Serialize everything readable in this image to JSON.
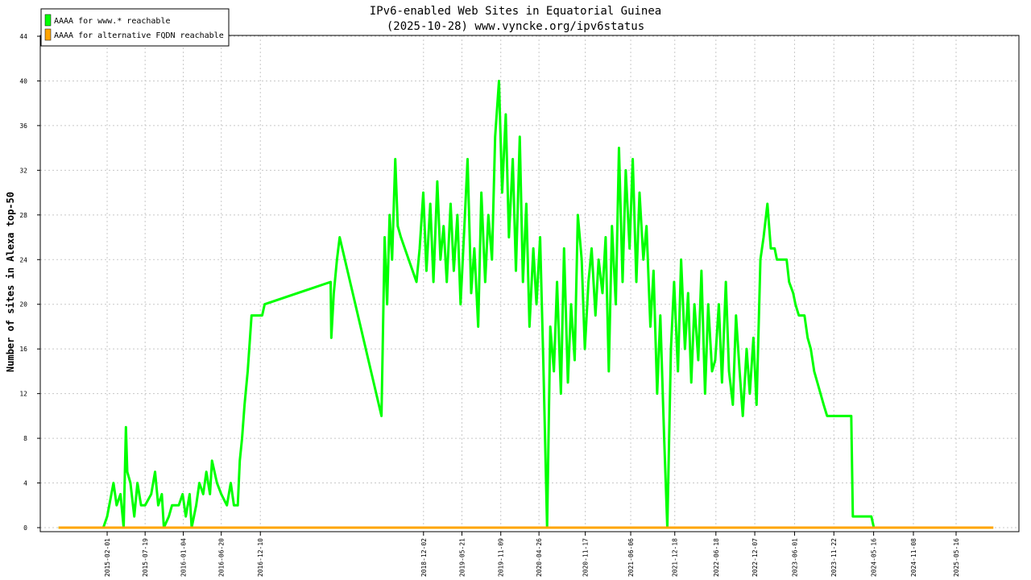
{
  "chart_data": {
    "type": "line",
    "title": "IPv6-enabled Web Sites in Equatorial Guinea",
    "subtitle": "(2025-10-28) www.vyncke.org/ipv6status",
    "ylabel": "Number of sites in Alexa top-50",
    "ylim": [
      0,
      44
    ],
    "yticks": [
      0,
      4,
      8,
      12,
      16,
      20,
      24,
      28,
      32,
      36,
      40,
      44
    ],
    "xlim": [
      "2014-04-11",
      "2026-02-18"
    ],
    "xticks": [
      "2015-02-01",
      "2015-07-19",
      "2016-01-04",
      "2016-06-20",
      "2016-12-10",
      "2018-12-02",
      "2019-05-21",
      "2019-11-09",
      "2020-04-26",
      "2020-11-17",
      "2021-06-06",
      "2021-12-18",
      "2022-06-18",
      "2022-12-07",
      "2023-06-01",
      "2023-11-22",
      "2024-05-16",
      "2024-11-08",
      "2025-05-16"
    ],
    "grid": true,
    "legend": "upper left",
    "series": [
      {
        "name": "AAAA for www.* reachable",
        "color": "#00ff00",
        "x": [
          "2014-07-01",
          "2015-01-15",
          "2015-02-01",
          "2015-03-01",
          "2015-03-15",
          "2015-04-01",
          "2015-04-15",
          "2015-04-25",
          "2015-05-01",
          "2015-05-15",
          "2015-06-01",
          "2015-06-15",
          "2015-07-01",
          "2015-07-19",
          "2015-08-15",
          "2015-09-01",
          "2015-09-15",
          "2015-10-01",
          "2015-10-10",
          "2015-11-01",
          "2015-11-15",
          "2015-12-15",
          "2016-01-01",
          "2016-01-15",
          "2016-02-01",
          "2016-02-10",
          "2016-03-01",
          "2016-03-15",
          "2016-04-01",
          "2016-04-15",
          "2016-05-01",
          "2016-05-10",
          "2016-06-01",
          "2016-06-20",
          "2016-07-15",
          "2016-08-01",
          "2016-08-15",
          "2016-09-01",
          "2016-09-10",
          "2016-09-20",
          "2016-10-01",
          "2016-10-15",
          "2016-11-01",
          "2016-12-18",
          "2016-12-29",
          "2017-10-17",
          "2017-10-20",
          "2017-10-31",
          "2017-11-14",
          "2017-11-26",
          "2018-05-30",
          "2018-06-13",
          "2018-06-24",
          "2018-07-05",
          "2018-07-16",
          "2018-07-30",
          "2018-08-10",
          "2018-08-24",
          "2018-11-01",
          "2018-11-15",
          "2018-12-01",
          "2018-12-15",
          "2019-01-01",
          "2019-01-15",
          "2019-02-01",
          "2019-02-15",
          "2019-03-01",
          "2019-03-15",
          "2019-04-01",
          "2019-04-15",
          "2019-05-01",
          "2019-05-15",
          "2019-06-01",
          "2019-06-15",
          "2019-07-01",
          "2019-07-15",
          "2019-08-01",
          "2019-08-15",
          "2019-09-01",
          "2019-09-15",
          "2019-10-01",
          "2019-10-15",
          "2019-11-01",
          "2019-11-15",
          "2019-12-01",
          "2019-12-15",
          "2020-01-01",
          "2020-01-15",
          "2020-02-01",
          "2020-02-15",
          "2020-03-01",
          "2020-03-15",
          "2020-04-01",
          "2020-04-15",
          "2020-05-01",
          "2020-05-15",
          "2020-06-01",
          "2020-06-15",
          "2020-07-01",
          "2020-07-15",
          "2020-08-01",
          "2020-08-15",
          "2020-09-01",
          "2020-09-15",
          "2020-10-01",
          "2020-10-15",
          "2020-11-01",
          "2020-11-15",
          "2020-12-01",
          "2020-12-15",
          "2021-01-01",
          "2021-01-15",
          "2021-02-01",
          "2021-02-15",
          "2021-03-01",
          "2021-03-15",
          "2021-04-01",
          "2021-04-15",
          "2021-05-01",
          "2021-05-15",
          "2021-06-01",
          "2021-06-15",
          "2021-07-01",
          "2021-07-15",
          "2021-08-01",
          "2021-08-15",
          "2021-09-01",
          "2021-09-15",
          "2021-10-01",
          "2021-10-15",
          "2021-11-01",
          "2021-11-15",
          "2021-12-01",
          "2021-12-15",
          "2022-01-01",
          "2022-01-15",
          "2022-02-01",
          "2022-02-15",
          "2022-03-01",
          "2022-03-15",
          "2022-04-01",
          "2022-04-15",
          "2022-05-01",
          "2022-05-15",
          "2022-06-01",
          "2022-06-15",
          "2022-07-01",
          "2022-07-15",
          "2022-08-01",
          "2022-08-15",
          "2022-09-01",
          "2022-09-15",
          "2022-10-01",
          "2022-10-15",
          "2022-11-01",
          "2022-11-15",
          "2022-12-01",
          "2022-12-15",
          "2023-01-01",
          "2023-01-15",
          "2023-02-01",
          "2023-02-16",
          "2023-03-05",
          "2023-03-15",
          "2023-04-27",
          "2023-05-08",
          "2023-05-26",
          "2023-06-05",
          "2023-06-20",
          "2023-07-15",
          "2023-07-29",
          "2023-08-12",
          "2023-08-27",
          "2023-09-10",
          "2023-09-24",
          "2023-10-08",
          "2023-10-23",
          "2024-02-07",
          "2024-02-14",
          "2024-05-06",
          "2024-05-17"
        ],
        "values": [
          0,
          0,
          1,
          4,
          2,
          3,
          0,
          9,
          5,
          4,
          1,
          4,
          2,
          2,
          3,
          5,
          2,
          3,
          0,
          1,
          2,
          2,
          3,
          1,
          3,
          0,
          2,
          4,
          3,
          5,
          3,
          6,
          4,
          3,
          2,
          4,
          2,
          2,
          6,
          8,
          11,
          14,
          19,
          19,
          20,
          22,
          17,
          21,
          24,
          26,
          10,
          26,
          20,
          28,
          24,
          33,
          27,
          26,
          22,
          25,
          30,
          23,
          29,
          22,
          31,
          24,
          27,
          22,
          29,
          23,
          28,
          20,
          27,
          33,
          21,
          25,
          18,
          30,
          22,
          28,
          24,
          35,
          40,
          30,
          37,
          26,
          33,
          23,
          35,
          22,
          29,
          18,
          25,
          20,
          26,
          15,
          0,
          18,
          14,
          22,
          12,
          25,
          13,
          20,
          15,
          28,
          24,
          16,
          22,
          25,
          19,
          24,
          21,
          26,
          14,
          27,
          20,
          34,
          22,
          32,
          25,
          33,
          22,
          30,
          24,
          27,
          18,
          23,
          12,
          19,
          8,
          0,
          16,
          22,
          14,
          24,
          16,
          21,
          13,
          20,
          15,
          23,
          12,
          20,
          14,
          15,
          20,
          13,
          22,
          14,
          11,
          19,
          14,
          10,
          16,
          12,
          17,
          11,
          24,
          26,
          29,
          25,
          25,
          24,
          24,
          22,
          21,
          20,
          19,
          19,
          17,
          16,
          14,
          13,
          12,
          11,
          10,
          10,
          1,
          1,
          0
        ]
      },
      {
        "name": "AAAA for alternative FQDN reachable",
        "color": "#ffa500",
        "x": [
          "2014-07-01",
          "2025-10-28"
        ],
        "values": [
          0,
          0
        ]
      }
    ]
  }
}
